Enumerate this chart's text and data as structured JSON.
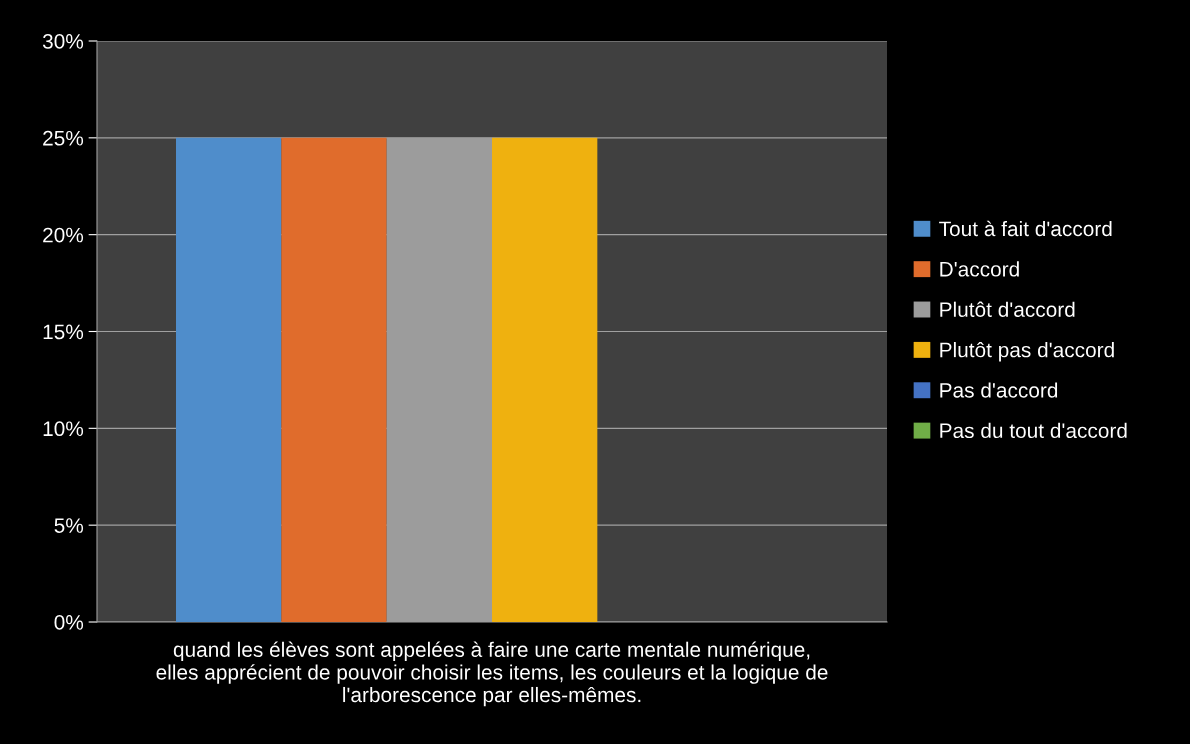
{
  "chart_data": {
    "type": "bar",
    "categories": [
      "quand les élèves sont appelées à faire une carte mentale numérique,\nelles apprécient de pouvoir choisir les items, les couleurs et la logique de\nl'arborescence par elles-mêmes."
    ],
    "series": [
      {
        "name": "Tout à fait d'accord",
        "color": "#4f8dcb",
        "values": [
          25
        ]
      },
      {
        "name": "D'accord",
        "color": "#e06c2c",
        "values": [
          25
        ]
      },
      {
        "name": "Plutôt d'accord",
        "color": "#9c9c9c",
        "values": [
          25
        ]
      },
      {
        "name": "Plutôt pas d'accord",
        "color": "#efb10f",
        "values": [
          25
        ]
      },
      {
        "name": "Pas d'accord",
        "color": "#4472c4",
        "values": [
          0
        ]
      },
      {
        "name": "Pas du tout d'accord",
        "color": "#70ad47",
        "values": [
          0
        ]
      }
    ],
    "ylim": [
      0,
      30
    ],
    "yticks": [
      {
        "value": 0,
        "label": "0%"
      },
      {
        "value": 5,
        "label": "5%"
      },
      {
        "value": 10,
        "label": "10%"
      },
      {
        "value": 15,
        "label": "15%"
      },
      {
        "value": 20,
        "label": "20%"
      },
      {
        "value": 25,
        "label": "25%"
      },
      {
        "value": 30,
        "label": "30%"
      }
    ],
    "grid": "y",
    "legend": "right"
  }
}
